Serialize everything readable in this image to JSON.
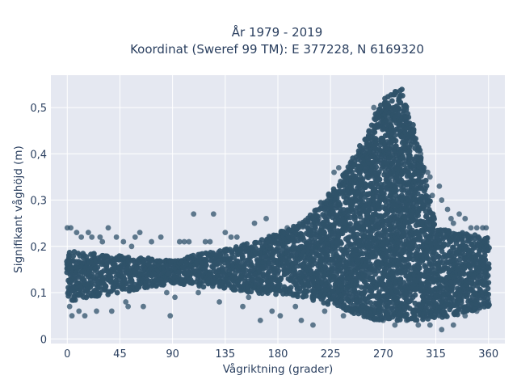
{
  "chart_data": {
    "type": "scatter",
    "title_line1": "År 1979 - 2019",
    "title_line2": "Koordinat (Sweref 99 TM): E 377228, N 6169320",
    "xlabel": "Vågriktning (grader)",
    "ylabel": "Signifikant våghöjd (m)",
    "xlim": [
      -14,
      374
    ],
    "ylim": [
      -0.01,
      0.57
    ],
    "x_ticks": [
      0,
      45,
      90,
      135,
      180,
      225,
      270,
      315,
      360
    ],
    "x_tick_labels": [
      "0",
      "45",
      "90",
      "135",
      "180",
      "225",
      "270",
      "315",
      "360"
    ],
    "y_ticks": [
      0,
      0.1,
      0.2,
      0.3,
      0.4,
      0.5
    ],
    "y_tick_labels": [
      "0",
      "0,1",
      "0,2",
      "0,3",
      "0,4",
      "0,5"
    ],
    "grid": true,
    "colors": {
      "background": "#e5e8f1",
      "grid": "#ffffff",
      "marker": "#2f5269"
    },
    "series": [
      {
        "dense_band": {
          "x_range": [
            0,
            360
          ],
          "y_low": [
            [
              0,
              0.08
            ],
            [
              90,
              0.12
            ],
            [
              160,
              0.1
            ],
            [
              200,
              0.09
            ],
            [
              230,
              0.07
            ],
            [
              260,
              0.04
            ],
            [
              300,
              0.04
            ],
            [
              330,
              0.05
            ],
            [
              360,
              0.07
            ]
          ],
          "y_high": [
            [
              0,
              0.19
            ],
            [
              90,
              0.17
            ],
            [
              160,
              0.21
            ],
            [
              200,
              0.25
            ],
            [
              230,
              0.33
            ],
            [
              255,
              0.44
            ],
            [
              270,
              0.52
            ],
            [
              285,
              0.55
            ],
            [
              300,
              0.42
            ],
            [
              315,
              0.24
            ],
            [
              360,
              0.22
            ]
          ]
        },
        "points": [
          [
            0,
            0.24
          ],
          [
            3,
            0.24
          ],
          [
            2,
            0.07
          ],
          [
            4,
            0.05
          ],
          [
            8,
            0.23
          ],
          [
            10,
            0.06
          ],
          [
            12,
            0.22
          ],
          [
            15,
            0.05
          ],
          [
            18,
            0.23
          ],
          [
            21,
            0.22
          ],
          [
            25,
            0.06
          ],
          [
            28,
            0.22
          ],
          [
            30,
            0.21
          ],
          [
            35,
            0.24
          ],
          [
            38,
            0.06
          ],
          [
            42,
            0.22
          ],
          [
            48,
            0.21
          ],
          [
            50,
            0.08
          ],
          [
            52,
            0.07
          ],
          [
            55,
            0.2
          ],
          [
            58,
            0.22
          ],
          [
            62,
            0.23
          ],
          [
            65,
            0.07
          ],
          [
            72,
            0.21
          ],
          [
            80,
            0.22
          ],
          [
            85,
            0.1
          ],
          [
            92,
            0.09
          ],
          [
            88,
            0.05
          ],
          [
            96,
            0.21
          ],
          [
            100,
            0.21
          ],
          [
            104,
            0.21
          ],
          [
            108,
            0.27
          ],
          [
            112,
            0.1
          ],
          [
            118,
            0.21
          ],
          [
            125,
            0.27
          ],
          [
            122,
            0.21
          ],
          [
            130,
            0.08
          ],
          [
            135,
            0.23
          ],
          [
            140,
            0.22
          ],
          [
            145,
            0.22
          ],
          [
            150,
            0.07
          ],
          [
            155,
            0.09
          ],
          [
            160,
            0.25
          ],
          [
            165,
            0.04
          ],
          [
            170,
            0.26
          ],
          [
            175,
            0.06
          ],
          [
            182,
            0.05
          ],
          [
            188,
            0.24
          ],
          [
            195,
            0.07
          ],
          [
            200,
            0.04
          ],
          [
            205,
            0.25
          ],
          [
            210,
            0.03
          ],
          [
            215,
            0.26
          ],
          [
            220,
            0.06
          ],
          [
            228,
            0.36
          ],
          [
            232,
            0.37
          ],
          [
            236,
            0.05
          ],
          [
            242,
            0.38
          ],
          [
            258,
            0.45
          ],
          [
            262,
            0.5
          ],
          [
            265,
            0.46
          ],
          [
            290,
            0.47
          ],
          [
            302,
            0.4
          ],
          [
            305,
            0.37
          ],
          [
            308,
            0.36
          ],
          [
            310,
            0.35
          ],
          [
            312,
            0.31
          ],
          [
            318,
            0.33
          ],
          [
            320,
            0.3
          ],
          [
            325,
            0.28
          ],
          [
            328,
            0.26
          ],
          [
            330,
            0.25
          ],
          [
            335,
            0.27
          ],
          [
            340,
            0.26
          ],
          [
            345,
            0.24
          ],
          [
            350,
            0.24
          ],
          [
            355,
            0.24
          ],
          [
            358,
            0.24
          ],
          [
            320,
            0.02
          ],
          [
            330,
            0.03
          ],
          [
            340,
            0.05
          ],
          [
            350,
            0.06
          ],
          [
            300,
            0.03
          ],
          [
            310,
            0.03
          ],
          [
            280,
            0.03
          ],
          [
            270,
            0.04
          ],
          [
            290,
            0.04
          ],
          [
            360,
            0.08
          ]
        ]
      }
    ]
  }
}
